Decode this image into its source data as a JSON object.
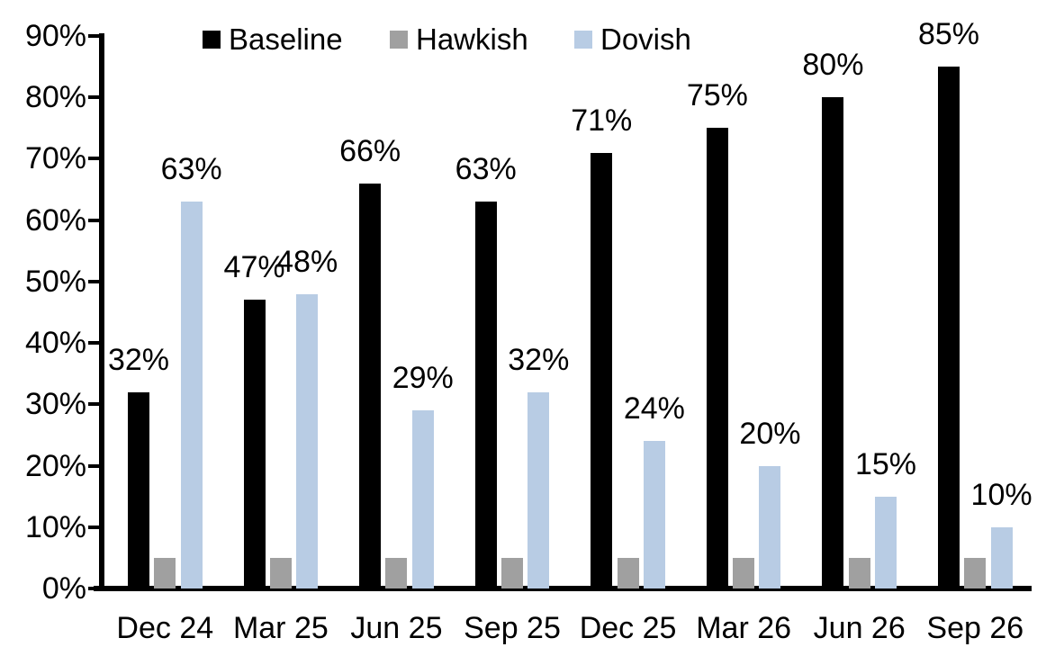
{
  "chart_data": {
    "type": "bar",
    "title": "",
    "categories": [
      "Dec 24",
      "Mar 25",
      "Jun 25",
      "Sep 25",
      "Dec 25",
      "Mar 26",
      "Jun 26",
      "Sep 26"
    ],
    "series": [
      {
        "name": "Baseline",
        "color": "#000000",
        "values": [
          32,
          47,
          66,
          63,
          71,
          75,
          80,
          85
        ],
        "data_labels": [
          "32%",
          "47%",
          "66%",
          "63%",
          "71%",
          "75%",
          "80%",
          "85%"
        ],
        "show_labels": true
      },
      {
        "name": "Hawkish",
        "color": "#a0a0a0",
        "values": [
          5,
          5,
          5,
          5,
          5,
          5,
          5,
          5
        ],
        "data_labels": [],
        "show_labels": false
      },
      {
        "name": "Dovish",
        "color": "#b8cce4",
        "values": [
          63,
          48,
          29,
          32,
          24,
          20,
          15,
          10
        ],
        "data_labels": [
          "63%",
          "48%",
          "29%",
          "32%",
          "24%",
          "20%",
          "15%",
          "10%"
        ],
        "show_labels": true
      }
    ],
    "y_ticks": [
      "0%",
      "10%",
      "20%",
      "30%",
      "40%",
      "50%",
      "60%",
      "70%",
      "80%",
      "90%"
    ],
    "ylim": [
      0,
      90
    ],
    "xlabel": "",
    "ylabel": "",
    "grid": false,
    "legend_position": "top"
  }
}
